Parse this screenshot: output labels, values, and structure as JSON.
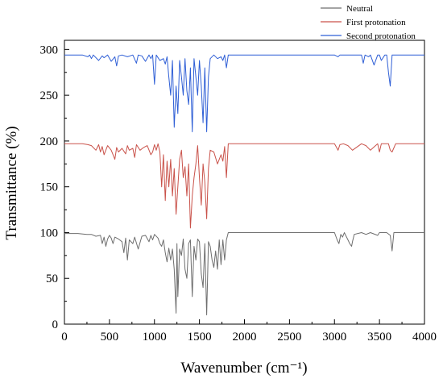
{
  "chart_data": {
    "type": "line",
    "xlabel": "Wavenumber (cm⁻¹)",
    "ylabel": "Transmittance (%)",
    "xlim": [
      0,
      4000
    ],
    "ylim": [
      0,
      310
    ],
    "xticks": [
      0,
      500,
      1000,
      1500,
      2000,
      2500,
      3000,
      3500,
      4000
    ],
    "yticks": [
      0,
      50,
      100,
      150,
      200,
      250,
      300
    ],
    "grid": false,
    "legend_position": "top-right",
    "series": [
      {
        "name": "Neutral",
        "color": "#6e6e6e",
        "x": [
          0,
          150,
          250,
          300,
          350,
          400,
          420,
          440,
          460,
          480,
          500,
          520,
          540,
          560,
          600,
          640,
          660,
          680,
          700,
          720,
          760,
          780,
          820,
          860,
          900,
          940,
          960,
          980,
          1000,
          1040,
          1060,
          1080,
          1100,
          1120,
          1140,
          1160,
          1180,
          1200,
          1220,
          1240,
          1250,
          1260,
          1280,
          1300,
          1320,
          1340,
          1360,
          1380,
          1400,
          1420,
          1440,
          1460,
          1480,
          1500,
          1520,
          1540,
          1560,
          1580,
          1600,
          1620,
          1640,
          1660,
          1680,
          1700,
          1720,
          1740,
          1760,
          1780,
          1800,
          1820,
          1840,
          1900,
          2000,
          2500,
          3000,
          3030,
          3050,
          3070,
          3090,
          3110,
          3150,
          3170,
          3190,
          3200,
          3220,
          3300,
          3350,
          3400,
          3480,
          3500,
          3520,
          3580,
          3620,
          3640,
          3660,
          3700,
          4000
        ],
        "y": [
          99,
          99,
          98,
          98,
          96,
          97,
          88,
          95,
          85,
          93,
          97,
          94,
          88,
          95,
          93,
          90,
          78,
          94,
          70,
          92,
          88,
          95,
          82,
          96,
          97,
          90,
          97,
          92,
          98,
          94,
          88,
          85,
          92,
          78,
          68,
          83,
          70,
          82,
          60,
          12,
          88,
          30,
          82,
          75,
          93,
          60,
          50,
          88,
          92,
          30,
          85,
          70,
          93,
          90,
          55,
          40,
          88,
          10,
          90,
          85,
          70,
          62,
          80,
          60,
          92,
          65,
          92,
          70,
          92,
          100,
          100,
          100,
          100,
          100,
          100,
          92,
          88,
          98,
          95,
          100,
          92,
          88,
          85,
          90,
          98,
          100,
          98,
          100,
          97,
          100,
          100,
          100,
          97,
          80,
          100,
          100,
          100
        ]
      },
      {
        "name": "First protonation",
        "color": "#c9524a",
        "x": [
          0,
          200,
          260,
          300,
          350,
          380,
          400,
          420,
          440,
          480,
          520,
          560,
          580,
          600,
          640,
          680,
          700,
          720,
          760,
          780,
          800,
          840,
          880,
          920,
          960,
          980,
          1000,
          1020,
          1040,
          1060,
          1080,
          1100,
          1120,
          1140,
          1160,
          1180,
          1200,
          1220,
          1240,
          1260,
          1280,
          1300,
          1320,
          1340,
          1360,
          1380,
          1400,
          1420,
          1440,
          1460,
          1480,
          1500,
          1520,
          1540,
          1560,
          1580,
          1600,
          1620,
          1660,
          1700,
          1740,
          1760,
          1780,
          1800,
          1820,
          1860,
          2000,
          2500,
          3000,
          3040,
          3060,
          3100,
          3150,
          3200,
          3300,
          3350,
          3400,
          3480,
          3500,
          3520,
          3600,
          3620,
          3640,
          3680,
          4000
        ],
        "y": [
          197,
          197,
          196,
          195,
          190,
          196,
          188,
          194,
          185,
          195,
          190,
          180,
          193,
          188,
          192,
          186,
          195,
          190,
          192,
          182,
          196,
          190,
          193,
          195,
          185,
          188,
          196,
          190,
          197,
          188,
          150,
          185,
          135,
          178,
          150,
          180,
          140,
          170,
          120,
          150,
          180,
          190,
          160,
          172,
          140,
          175,
          105,
          140,
          160,
          175,
          195,
          160,
          130,
          175,
          155,
          115,
          170,
          190,
          188,
          175,
          185,
          178,
          194,
          160,
          197,
          197,
          197,
          197,
          197,
          190,
          196,
          197,
          195,
          190,
          197,
          195,
          190,
          197,
          188,
          197,
          197,
          190,
          188,
          197,
          197
        ]
      },
      {
        "name": "Second protonation",
        "color": "#2f5fd6",
        "x": [
          0,
          200,
          260,
          280,
          300,
          320,
          380,
          420,
          440,
          480,
          520,
          560,
          580,
          600,
          640,
          700,
          760,
          800,
          820,
          860,
          900,
          940,
          960,
          980,
          1000,
          1020,
          1060,
          1100,
          1120,
          1140,
          1160,
          1180,
          1200,
          1220,
          1240,
          1260,
          1280,
          1300,
          1320,
          1340,
          1360,
          1380,
          1400,
          1420,
          1440,
          1460,
          1480,
          1500,
          1520,
          1540,
          1560,
          1580,
          1600,
          1620,
          1660,
          1700,
          1740,
          1760,
          1780,
          1800,
          1820,
          1860,
          2000,
          2500,
          3000,
          3040,
          3060,
          3100,
          3200,
          3300,
          3320,
          3340,
          3380,
          3400,
          3440,
          3480,
          3500,
          3520,
          3560,
          3580,
          3600,
          3620,
          3640,
          3660,
          3700,
          4000
        ],
        "y": [
          294,
          294,
          292,
          294,
          290,
          294,
          288,
          293,
          291,
          294,
          287,
          292,
          282,
          293,
          294,
          292,
          294,
          285,
          294,
          293,
          287,
          294,
          290,
          294,
          262,
          294,
          288,
          290,
          284,
          292,
          270,
          250,
          288,
          215,
          260,
          230,
          288,
          270,
          250,
          290,
          255,
          240,
          280,
          210,
          290,
          270,
          250,
          288,
          260,
          220,
          280,
          210,
          270,
          290,
          294,
          290,
          292,
          288,
          294,
          280,
          294,
          294,
          294,
          294,
          294,
          292,
          294,
          294,
          294,
          294,
          285,
          294,
          292,
          294,
          283,
          294,
          294,
          288,
          294,
          294,
          275,
          260,
          294,
          294,
          294,
          294
        ]
      }
    ]
  }
}
